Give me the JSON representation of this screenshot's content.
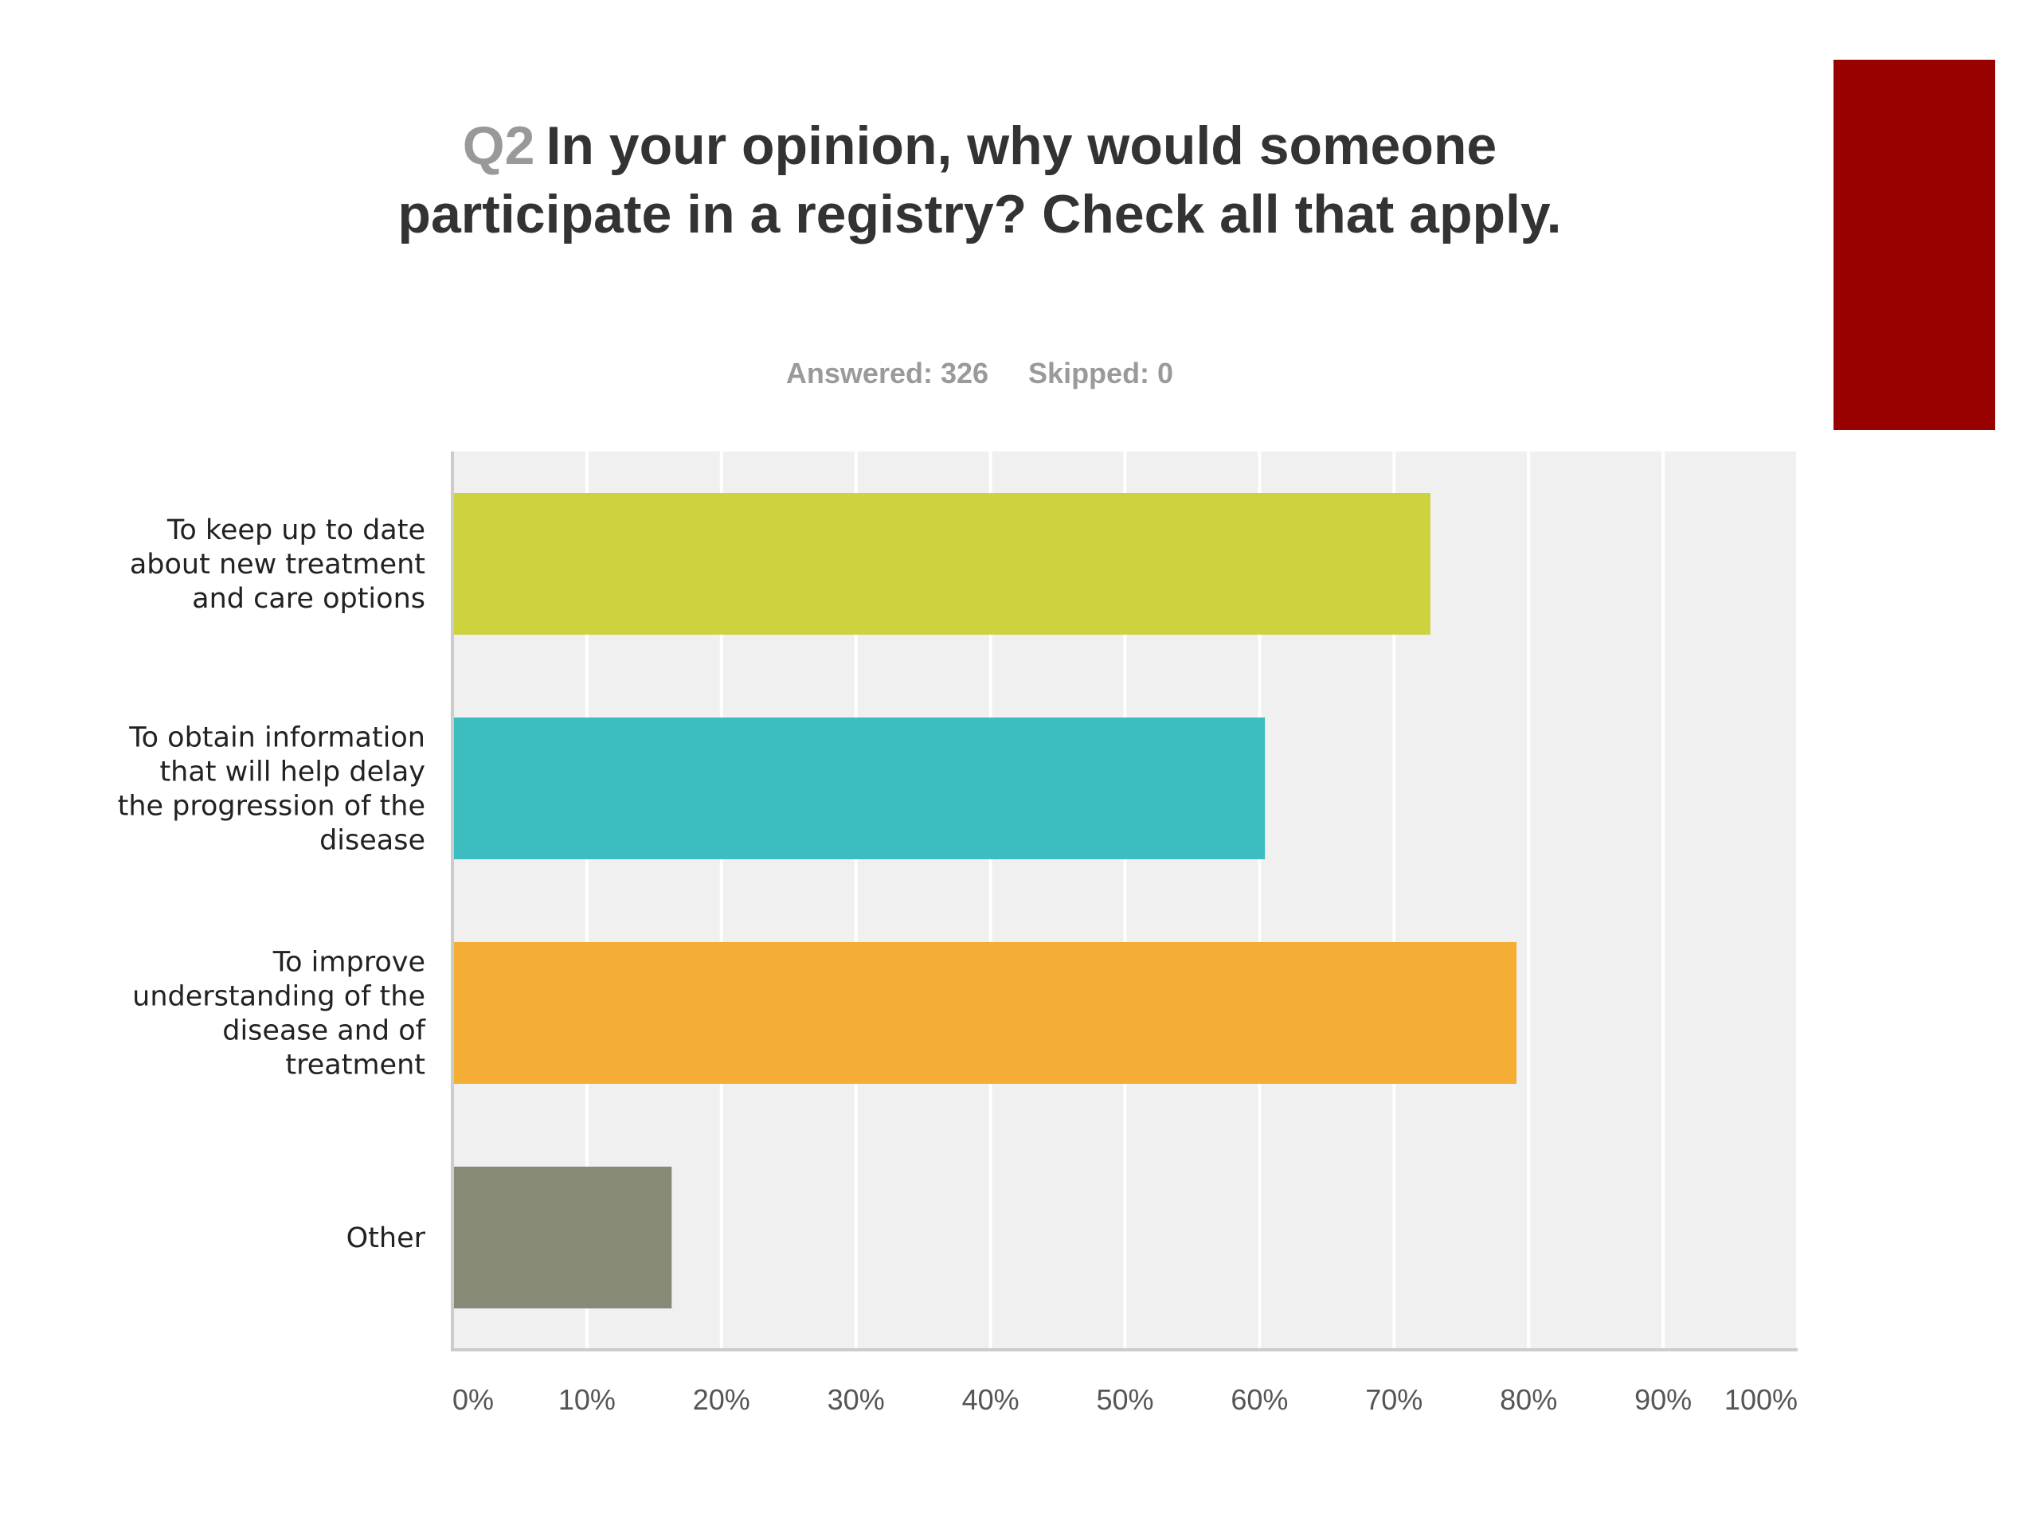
{
  "slide": {
    "accent_color": "#990000"
  },
  "question": {
    "number": "Q2",
    "text": "In your opinion, why would someone participate in a registry? Check all that apply.",
    "answered": "Answered: 326",
    "skipped": "Skipped: 0"
  },
  "chart_data": {
    "type": "bar",
    "orientation": "horizontal",
    "categories": [
      "To keep up to date about new treatment and care options",
      "To obtain information that will help delay the progression of the disease",
      "To improve understanding of the disease and of treatment",
      "Other"
    ],
    "category_lines": [
      [
        "To keep up to date",
        "about new treatment",
        "and care options"
      ],
      [
        "To obtain information",
        "that will help delay",
        "the progression of the",
        "disease"
      ],
      [
        "To improve",
        "understanding of the",
        "disease and of",
        "treatment"
      ],
      [
        "Other"
      ]
    ],
    "values": [
      72.7,
      60.4,
      79.1,
      16.3
    ],
    "colors": [
      "#cdd33e",
      "#3dbdbf",
      "#f4ae35",
      "#888a78"
    ],
    "xlim": [
      0,
      100
    ],
    "xticks": [
      "0%",
      "10%",
      "20%",
      "30%",
      "40%",
      "50%",
      "60%",
      "70%",
      "80%",
      "90%",
      "100%"
    ],
    "grid": true,
    "plot_background": "#f0f0f0",
    "legend": "none"
  }
}
